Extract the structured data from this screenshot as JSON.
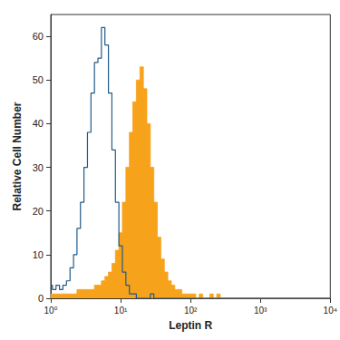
{
  "chart_data": {
    "type": "line",
    "xlabel": "Leptin R",
    "ylabel": "Relative Cell Number",
    "log": "x",
    "grid": false,
    "xlim": [
      1,
      10000
    ],
    "xticks": [
      {
        "value": 1,
        "label": "10⁰"
      },
      {
        "value": 10,
        "label": "10¹"
      },
      {
        "value": 100,
        "label": "10²"
      },
      {
        "value": 1000,
        "label": "10³"
      },
      {
        "value": 10000,
        "label": "10⁴"
      }
    ],
    "ylim": [
      0,
      65
    ],
    "yticks": [
      0,
      10,
      20,
      30,
      40,
      50,
      60
    ],
    "x": [
      1,
      1.12,
      1.26,
      1.41,
      1.58,
      1.78,
      2.0,
      2.24,
      2.51,
      2.82,
      3.16,
      3.55,
      3.98,
      4.47,
      5.01,
      5.62,
      6.31,
      7.08,
      7.94,
      8.91,
      10,
      11.2,
      12.6,
      14.1,
      15.8,
      17.8,
      20,
      22.4,
      25.1,
      28.2,
      31.6,
      35.5,
      39.8,
      44.7,
      50.1,
      56.2,
      63.1,
      70.8,
      79.4,
      89.1,
      100,
      112,
      126,
      141,
      158,
      178,
      200,
      224,
      251,
      282,
      316,
      1000,
      10000
    ],
    "series": [
      {
        "type": "area",
        "color": "#f7a21b",
        "values": [
          1,
          1,
          1,
          1,
          1,
          1,
          1,
          1,
          2,
          2,
          2,
          2,
          2,
          3,
          3,
          4,
          5,
          6,
          8,
          11,
          15,
          22,
          30,
          38,
          45,
          50,
          53,
          48,
          40,
          30,
          22,
          14,
          9,
          6,
          4,
          3,
          2,
          2,
          1,
          1,
          1,
          1,
          0,
          1,
          0,
          0,
          1,
          0,
          1,
          0,
          0,
          0,
          0
        ]
      },
      {
        "type": "line",
        "color": "#1f5a8a",
        "values": [
          3,
          2,
          3,
          2,
          3,
          4,
          7,
          10,
          16,
          22,
          30,
          38,
          47,
          54,
          55,
          62,
          58,
          47,
          34,
          22,
          12,
          6,
          3,
          1,
          1,
          0,
          0,
          0,
          0,
          1,
          0,
          0,
          0,
          0,
          0,
          0,
          0,
          0,
          0,
          0,
          0,
          0,
          0,
          0,
          0,
          0,
          0,
          0,
          0,
          0,
          0,
          0,
          0
        ]
      }
    ]
  }
}
